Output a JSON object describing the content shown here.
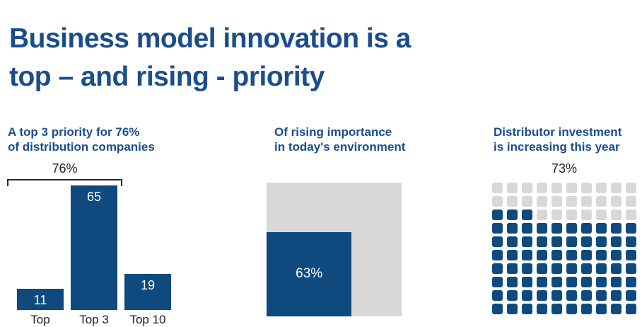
{
  "title": {
    "line1": "Business model innovation is a",
    "line2": "top – and rising - priority"
  },
  "colors": {
    "heading_blue": "#1a4d8c",
    "chart_blue": "#0f4a7f",
    "light_gray": "#d8d8d8",
    "label_dark": "#212121",
    "value_text_white": "#ffffff"
  },
  "panels": {
    "left": {
      "heading_line1": "A top 3 priority for 76%",
      "heading_line2": "of distribution companies"
    },
    "middle": {
      "heading_line1": "Of rising importance",
      "heading_line2": "in today's environment"
    },
    "right": {
      "heading_line1": "Distributor investment",
      "heading_line2": "is increasing this year"
    }
  },
  "chart_data": [
    {
      "type": "bar",
      "panel": "left",
      "title": "A top 3 priority for 76% of distribution companies",
      "categories": [
        "Top",
        "Top 3",
        "Top 10"
      ],
      "values": [
        11,
        65,
        19
      ],
      "ylim": [
        0,
        70
      ],
      "axes_visible": false,
      "value_labels": "inside bar, top, white",
      "bar_color": "#0f4a7f",
      "bracket_annotation": {
        "label": "76%",
        "spans_categories": [
          "Top",
          "Top 3"
        ]
      }
    },
    {
      "type": "area",
      "panel": "middle",
      "title": "Of rising importance in today's environment",
      "value": 63,
      "unit": "%",
      "label": "63%",
      "style": "proportional blue square anchored bottom-left inside gray background square",
      "fill_color": "#0f4a7f",
      "background_color": "#d8d8d8"
    },
    {
      "type": "waffle",
      "panel": "right",
      "title": "Distributor investment is increasing this year",
      "rows": 10,
      "cols": 10,
      "total": 100,
      "filled": 73,
      "label": "73%",
      "fill_origin": "bottom, partial row left-aligned",
      "fill_color": "#0f4a7f",
      "empty_color": "#d8d8d8"
    }
  ]
}
